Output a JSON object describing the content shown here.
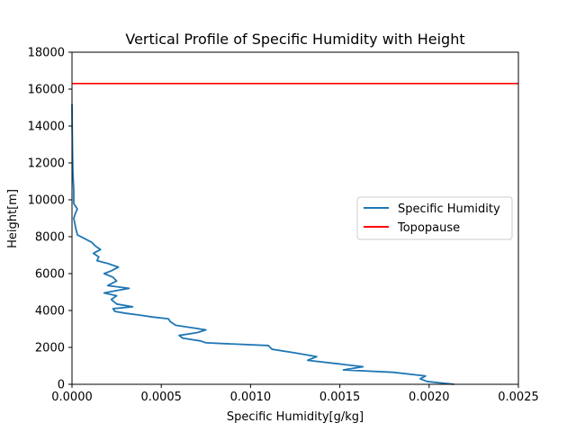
{
  "chart_data": {
    "type": "line",
    "title": "Vertical Profile of Specific Humidity with Height",
    "xlabel": "Specific Humidity[g/kg]",
    "ylabel": "Height[m]",
    "xlim": [
      0,
      0.0025
    ],
    "ylim": [
      0,
      18000
    ],
    "xticks": [
      "0.0000",
      "0.0005",
      "0.0010",
      "0.0015",
      "0.0020",
      "0.0025"
    ],
    "yticks": [
      "0",
      "2000",
      "4000",
      "6000",
      "8000",
      "10000",
      "12000",
      "14000",
      "16000",
      "18000"
    ],
    "grid": false,
    "legend_position": "center-right",
    "series": [
      {
        "name": "Specific Humidity",
        "color": "#1f77b4",
        "points": [
          [
            0.00214,
            0
          ],
          [
            0.00199,
            150
          ],
          [
            0.00195,
            300
          ],
          [
            0.00198,
            450
          ],
          [
            0.0018,
            650
          ],
          [
            0.00152,
            780
          ],
          [
            0.00163,
            950
          ],
          [
            0.0015,
            1100
          ],
          [
            0.00132,
            1300
          ],
          [
            0.00137,
            1500
          ],
          [
            0.00125,
            1700
          ],
          [
            0.00112,
            1900
          ],
          [
            0.0011,
            2100
          ],
          [
            0.00075,
            2250
          ],
          [
            0.00072,
            2350
          ],
          [
            0.00062,
            2500
          ],
          [
            0.0006,
            2650
          ],
          [
            0.0007,
            2800
          ],
          [
            0.00075,
            2950
          ],
          [
            0.00058,
            3200
          ],
          [
            0.00055,
            3400
          ],
          [
            0.00054,
            3550
          ],
          [
            0.00045,
            3650
          ],
          [
            0.00038,
            3750
          ],
          [
            0.0003,
            3850
          ],
          [
            0.00024,
            3950
          ],
          [
            0.00023,
            4100
          ],
          [
            0.00034,
            4200
          ],
          [
            0.00025,
            4350
          ],
          [
            0.00022,
            4600
          ],
          [
            0.00025,
            4800
          ],
          [
            0.00018,
            4950
          ],
          [
            0.00026,
            5100
          ],
          [
            0.00032,
            5200
          ],
          [
            0.0002,
            5350
          ],
          [
            0.00025,
            5600
          ],
          [
            0.00023,
            5800
          ],
          [
            0.00018,
            6000
          ],
          [
            0.00022,
            6150
          ],
          [
            0.00026,
            6350
          ],
          [
            0.0002,
            6550
          ],
          [
            0.00014,
            6700
          ],
          [
            0.00015,
            6900
          ],
          [
            0.00012,
            7100
          ],
          [
            0.00016,
            7300
          ],
          [
            0.00013,
            7500
          ],
          [
            0.00011,
            7700
          ],
          [
            7e-05,
            7900
          ],
          [
            3e-05,
            8100
          ],
          [
            2e-05,
            8500
          ],
          [
            1e-05,
            9000
          ],
          [
            2e-05,
            9300
          ],
          [
            3e-05,
            9500
          ],
          [
            1e-05,
            9800
          ],
          [
            1e-05,
            10500
          ],
          [
            5e-06,
            11500
          ],
          [
            3e-06,
            12500
          ],
          [
            1e-06,
            14000
          ],
          [
            0.0,
            15200
          ]
        ]
      },
      {
        "name": "Topopause",
        "color": "#ff0000",
        "y": 16300
      }
    ]
  }
}
